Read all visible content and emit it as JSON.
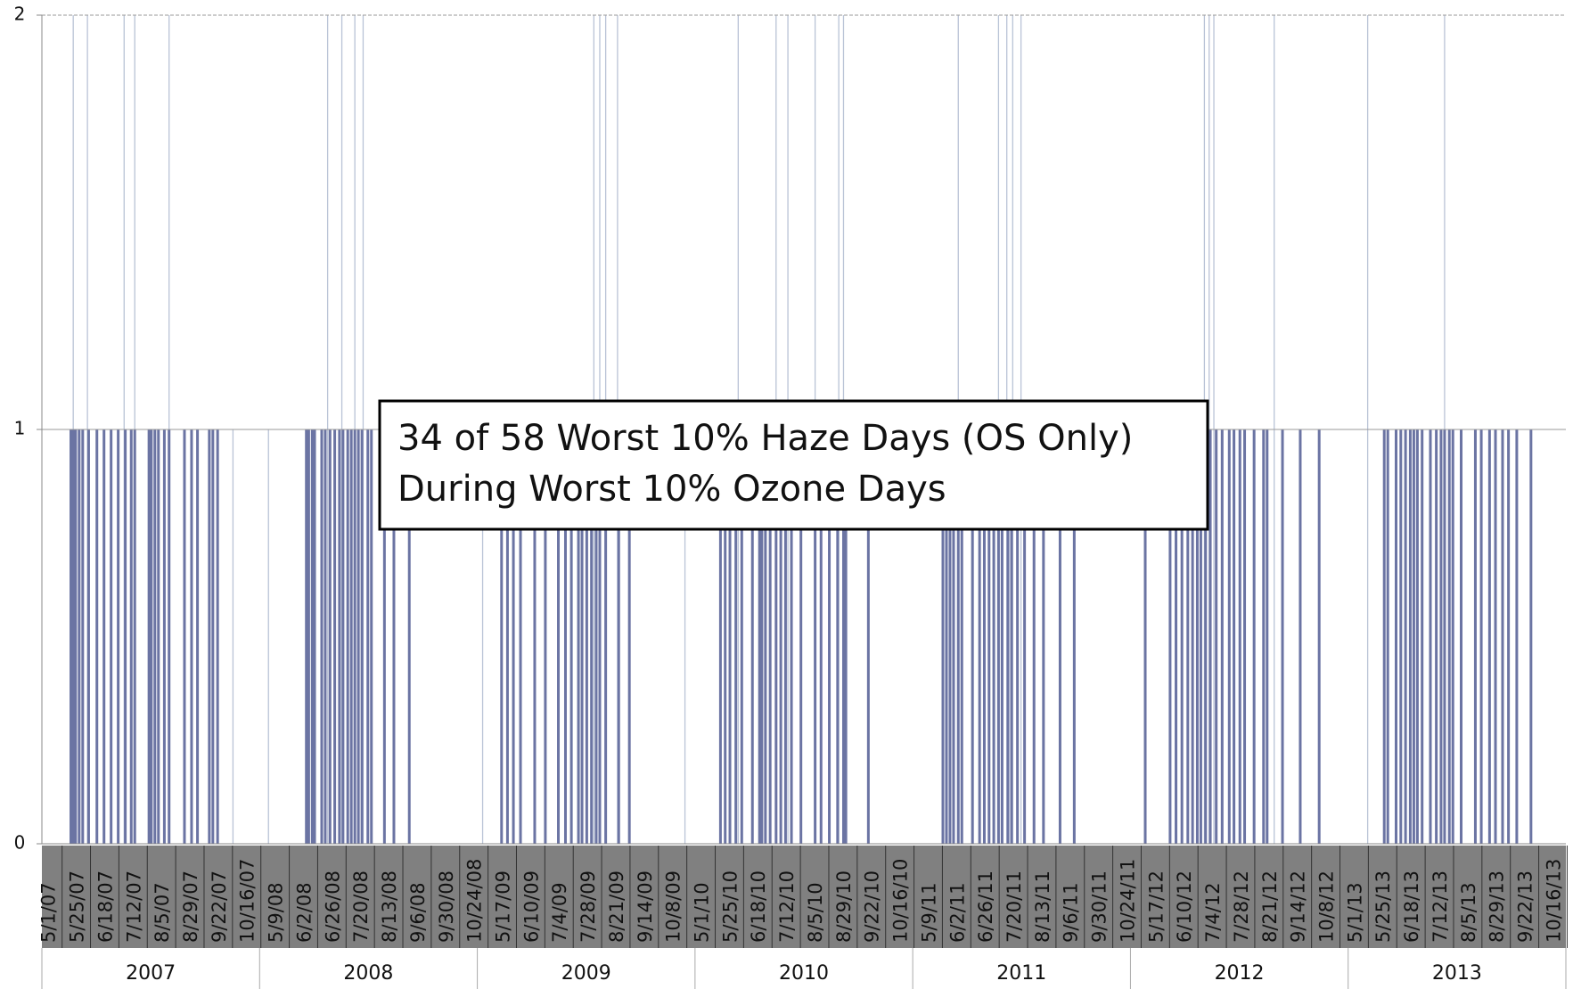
{
  "chart_data": {
    "type": "bar",
    "annotations": [
      "34 of 58 Worst 10% Haze Days (OS Only)",
      "During Worst 10% Ozone Days"
    ],
    "categories": [
      "5/1/07",
      "5/25/07",
      "6/18/07",
      "7/12/07",
      "8/5/07",
      "8/29/07",
      "9/22/07",
      "10/16/07",
      "5/9/08",
      "6/2/08",
      "6/26/08",
      "7/20/08",
      "8/13/08",
      "9/6/08",
      "9/30/08",
      "10/24/08",
      "5/17/09",
      "6/10/09",
      "7/4/09",
      "7/28/09",
      "8/21/09",
      "9/14/09",
      "10/8/09",
      "5/1/10",
      "5/25/10",
      "6/18/10",
      "7/12/10",
      "8/5/10",
      "8/29/10",
      "9/22/10",
      "10/16/10",
      "5/9/11",
      "6/2/11",
      "6/26/11",
      "7/20/11",
      "8/13/11",
      "9/6/11",
      "9/30/11",
      "10/24/11",
      "5/17/12",
      "6/10/12",
      "7/4/12",
      "7/28/12",
      "8/21/12",
      "9/14/12",
      "10/8/12",
      "5/1/13",
      "5/25/13",
      "6/18/13",
      "7/12/13",
      "8/5/13",
      "8/29/13",
      "9/22/13",
      "10/16/13"
    ],
    "x_groups": [
      "2007",
      "2008",
      "2009",
      "2010",
      "2011",
      "2012",
      "2013"
    ],
    "series": [
      {
        "color": "#b9c3d6",
        "x": [
          "5/27/07",
          "6/8/07",
          "7/9/07",
          "7/18/07",
          "8/16/07",
          "10/9/07",
          "5/8/08",
          "6/27/08",
          "7/9/08",
          "7/20/08",
          "7/27/08",
          "5/5/09",
          "8/7/09",
          "8/12/09",
          "8/17/09",
          "8/27/09",
          "10/23/09",
          "6/6/10",
          "7/8/10",
          "7/18/10",
          "8/10/10",
          "8/30/10",
          "9/3/10",
          "6/8/11",
          "7/12/11",
          "7/19/11",
          "7/24/11",
          "7/31/11",
          "7/2/12",
          "7/6/12",
          "7/10/12",
          "8/30/12",
          "5/17/13",
          "7/21/13"
        ],
        "values": [
          2,
          2,
          2,
          2,
          2,
          1,
          1,
          2,
          2,
          2,
          2,
          1,
          2,
          2,
          2,
          2,
          1,
          2,
          2,
          2,
          2,
          2,
          2,
          2,
          2,
          2,
          2,
          2,
          2,
          2,
          2,
          2,
          2,
          2
        ]
      },
      {
        "color": "#6b74a3",
        "x": [
          "5/25/07",
          "5/27/07",
          "5/29/07",
          "6/1/07",
          "6/4/07",
          "6/9/07",
          "6/16/07",
          "6/22/07",
          "6/28/07",
          "7/4/07",
          "7/10/07",
          "7/15/07",
          "7/18/07",
          "7/30/07",
          "8/1/07",
          "8/4/07",
          "8/7/07",
          "8/12/07",
          "8/16/07",
          "8/29/07",
          "9/4/07",
          "9/9/07",
          "9/19/07",
          "9/22/07",
          "9/26/07",
          "6/9/08",
          "6/11/08",
          "6/14/08",
          "6/16/08",
          "6/22/08",
          "6/25/08",
          "6/29/08",
          "7/3/08",
          "7/7/08",
          "7/10/08",
          "7/14/08",
          "7/17/08",
          "7/20/08",
          "7/23/08",
          "7/26/08",
          "7/31/08",
          "8/3/08",
          "8/14/08",
          "8/22/08",
          "9/4/08",
          "5/21/09",
          "5/26/09",
          "5/31/09",
          "6/6/09",
          "6/18/09",
          "6/27/09",
          "7/8/09",
          "7/14/09",
          "7/19/09",
          "7/25/09",
          "7/28/09",
          "8/1/09",
          "8/5/09",
          "8/9/09",
          "8/12/09",
          "8/17/09",
          "8/28/09",
          "9/6/09",
          "5/22/10",
          "5/26/10",
          "5/30/10",
          "6/4/10",
          "6/9/10",
          "6/18/10",
          "6/24/10",
          "6/26/10",
          "6/29/10",
          "7/3/10",
          "7/8/10",
          "7/12/10",
          "7/16/10",
          "7/21/10",
          "7/29/10",
          "8/10/10",
          "8/15/10",
          "8/22/10",
          "8/29/10",
          "9/3/10",
          "9/5/10",
          "9/24/10",
          "5/26/11",
          "5/29/11",
          "6/1/11",
          "6/4/11",
          "6/8/11",
          "6/11/11",
          "6/20/11",
          "6/26/11",
          "6/30/11",
          "7/4/11",
          "7/8/11",
          "7/12/11",
          "7/15/11",
          "7/20/11",
          "7/23/11",
          "7/28/11",
          "8/3/11",
          "8/11/11",
          "8/19/11",
          "9/2/11",
          "9/14/11",
          "5/13/12",
          "6/3/12",
          "6/8/12",
          "6/13/12",
          "6/18/12",
          "6/22/12",
          "6/26/12",
          "6/29/12",
          "7/3/12",
          "7/7/12",
          "7/12/12",
          "7/17/12",
          "7/23/12",
          "7/27/12",
          "8/1/12",
          "8/5/12",
          "8/13/12",
          "8/21/12",
          "8/24/12",
          "9/6/12",
          "9/21/12",
          "10/7/12",
          "5/31/13",
          "6/3/13",
          "6/10/13",
          "6/14/13",
          "6/18/13",
          "6/22/13",
          "6/25/13",
          "6/28/13",
          "7/2/13",
          "7/9/13",
          "7/14/13",
          "7/18/13",
          "7/21/13",
          "7/25/13",
          "7/28/13",
          "8/4/13",
          "8/16/13",
          "8/21/13",
          "8/28/13",
          "9/2/13",
          "9/8/13",
          "9/13/13",
          "9/20/13",
          "10/2/13"
        ],
        "values": [
          1,
          1,
          1,
          1,
          1,
          1,
          1,
          1,
          1,
          1,
          1,
          1,
          1,
          1,
          1,
          1,
          1,
          1,
          1,
          1,
          1,
          1,
          1,
          1,
          1,
          1,
          1,
          1,
          1,
          1,
          1,
          1,
          1,
          1,
          1,
          1,
          1,
          1,
          1,
          1,
          1,
          1,
          1,
          1,
          1,
          1,
          1,
          1,
          1,
          1,
          1,
          1,
          1,
          1,
          1,
          1,
          1,
          1,
          1,
          1,
          1,
          1,
          1,
          1,
          1,
          1,
          1,
          1,
          1,
          1,
          1,
          1,
          1,
          1,
          1,
          1,
          1,
          1,
          1,
          1,
          1,
          1,
          1,
          1,
          1,
          1,
          1,
          1,
          1,
          1,
          1,
          1,
          1,
          1,
          1,
          1,
          1,
          1,
          1,
          1,
          1,
          1,
          1,
          1,
          1,
          1,
          1,
          1,
          1,
          1,
          1,
          1,
          1,
          1,
          1,
          1,
          1,
          1,
          1,
          1,
          1,
          1,
          1,
          1,
          1,
          1,
          1,
          1,
          1,
          1,
          1,
          1,
          1,
          1,
          1,
          1,
          1,
          1,
          1,
          1,
          1,
          1,
          1,
          1,
          1,
          1,
          1,
          1,
          1,
          1,
          1,
          1
        ]
      }
    ],
    "ylim": [
      0,
      2
    ],
    "yticks": [
      0,
      1,
      2
    ],
    "grid": true
  }
}
